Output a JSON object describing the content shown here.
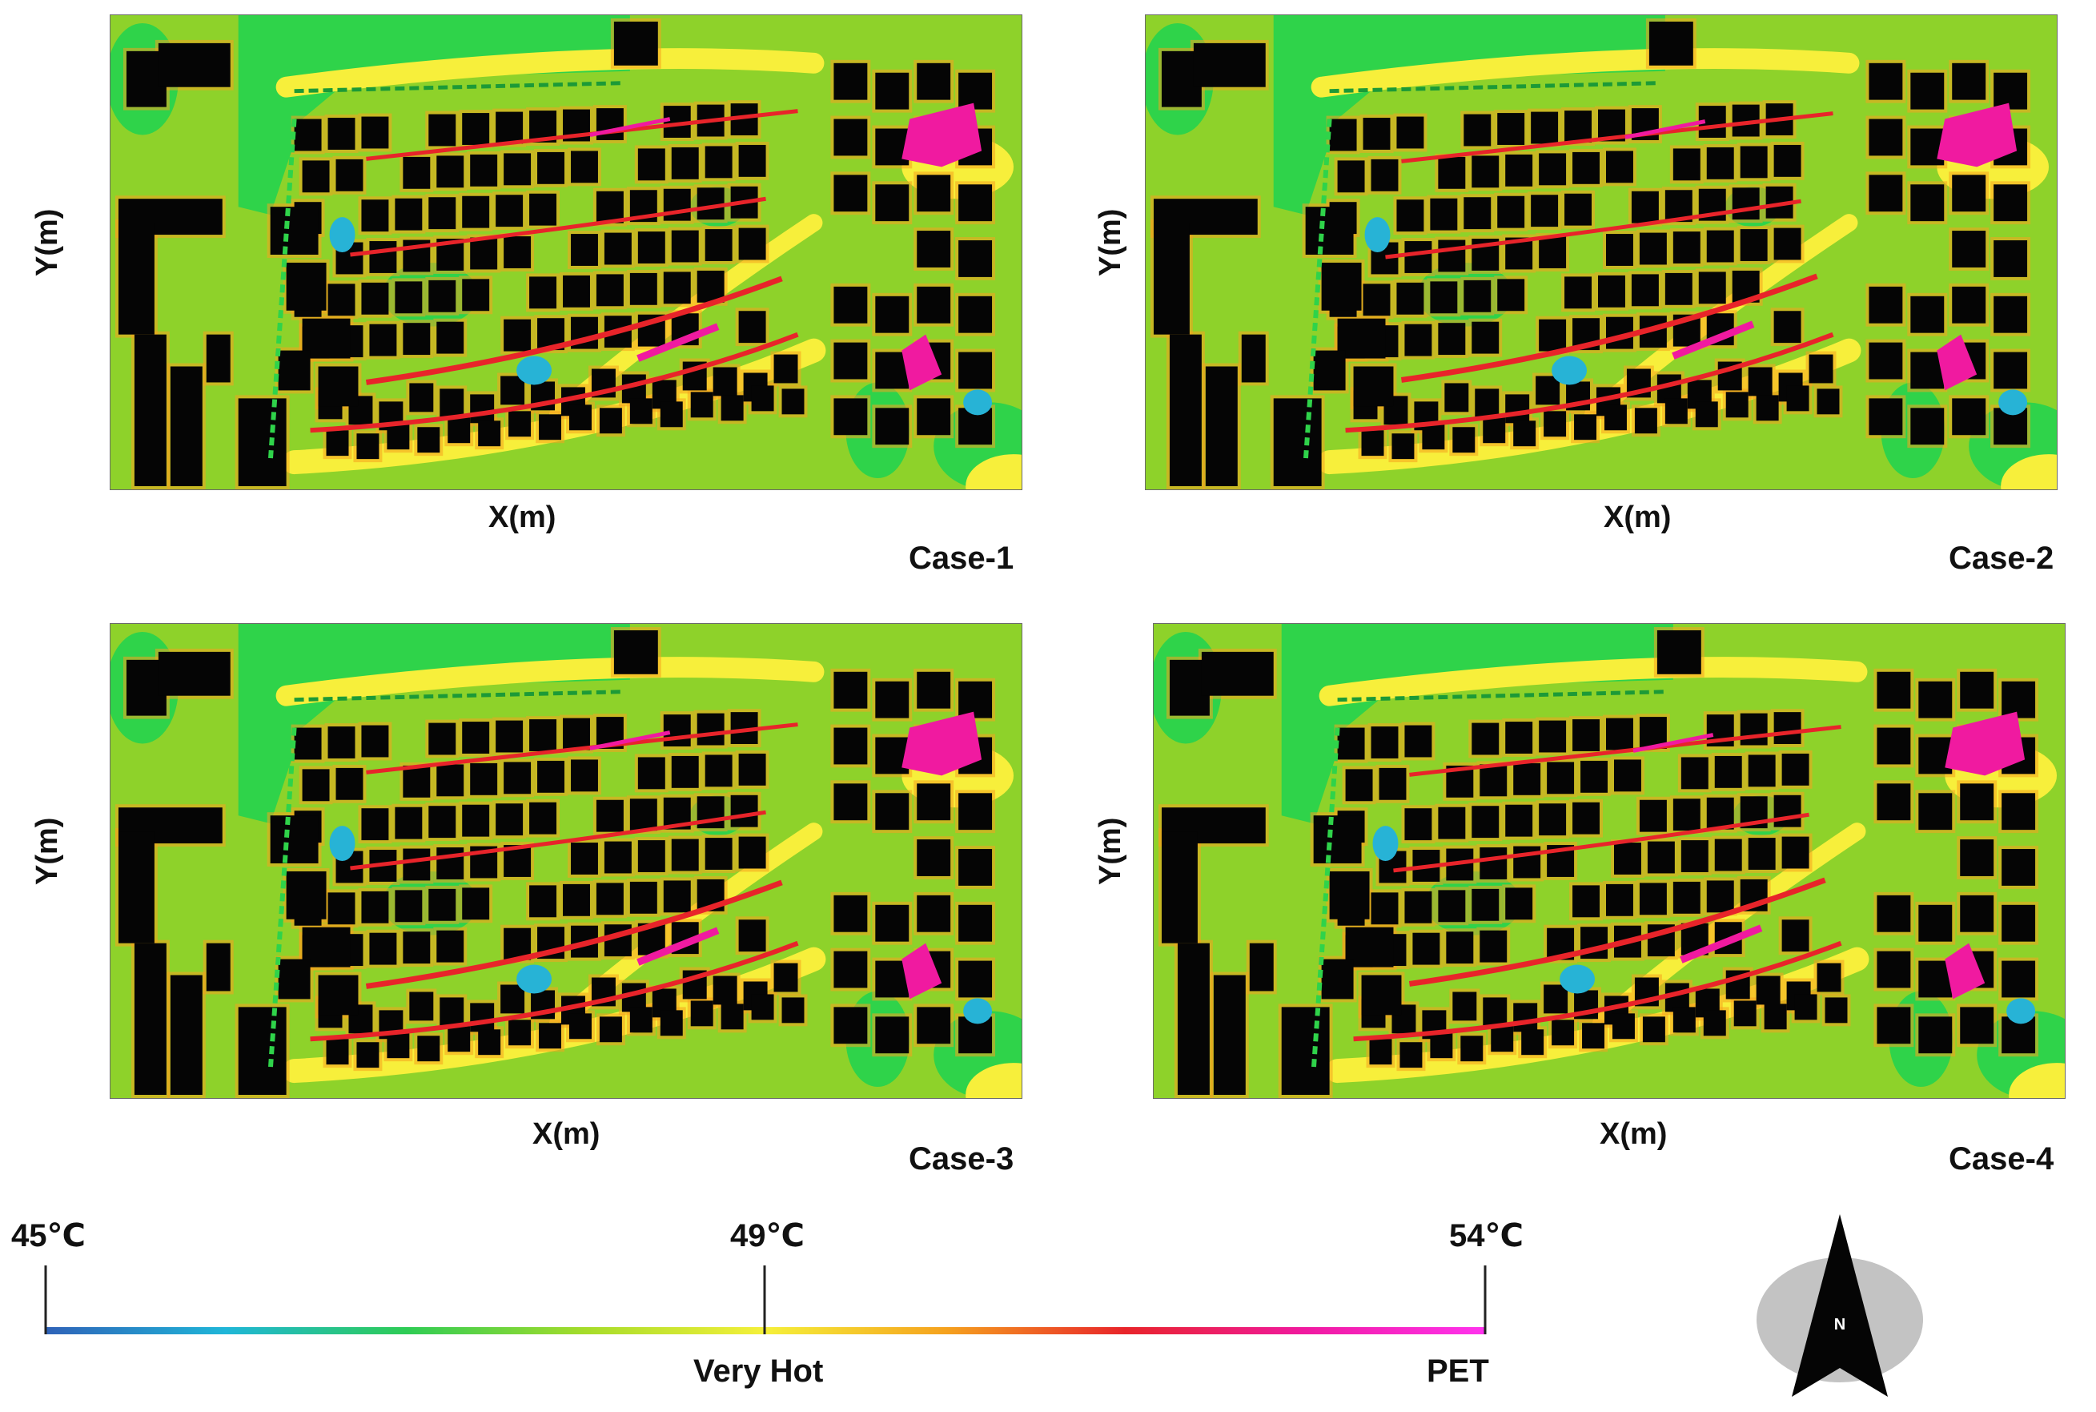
{
  "panels": [
    {
      "case_label": "Case-1",
      "xlabel": "X(m)",
      "ylabel": "Y(m)"
    },
    {
      "case_label": "Case-2",
      "xlabel": "X(m)",
      "ylabel": "Y(m)"
    },
    {
      "case_label": "Case-3",
      "xlabel": "X(m)",
      "ylabel": "Y(m)"
    },
    {
      "case_label": "Case-4",
      "xlabel": "X(m)",
      "ylabel": "Y(m)"
    }
  ],
  "legend": {
    "ticks": [
      "45℃",
      "49℃",
      "54℃"
    ],
    "category_labels": [
      "Very Hot",
      "PET"
    ],
    "gradient_colors": [
      "#2f62b8",
      "#1fb6d8",
      "#2ecc55",
      "#a6dc2a",
      "#f5f03a",
      "#f5a21e",
      "#e8242a",
      "#f01aa0",
      "#ff33ee"
    ]
  },
  "compass": {
    "label": "N"
  },
  "map_colors": {
    "background": "#8ed22a",
    "vegetation": "#2fd34a",
    "building": "#050505",
    "warm": "#f7ef3b",
    "hot": "#f5a21e",
    "very_hot": "#e8242a",
    "extreme": "#f01aa0",
    "cool": "#27b3d6"
  }
}
